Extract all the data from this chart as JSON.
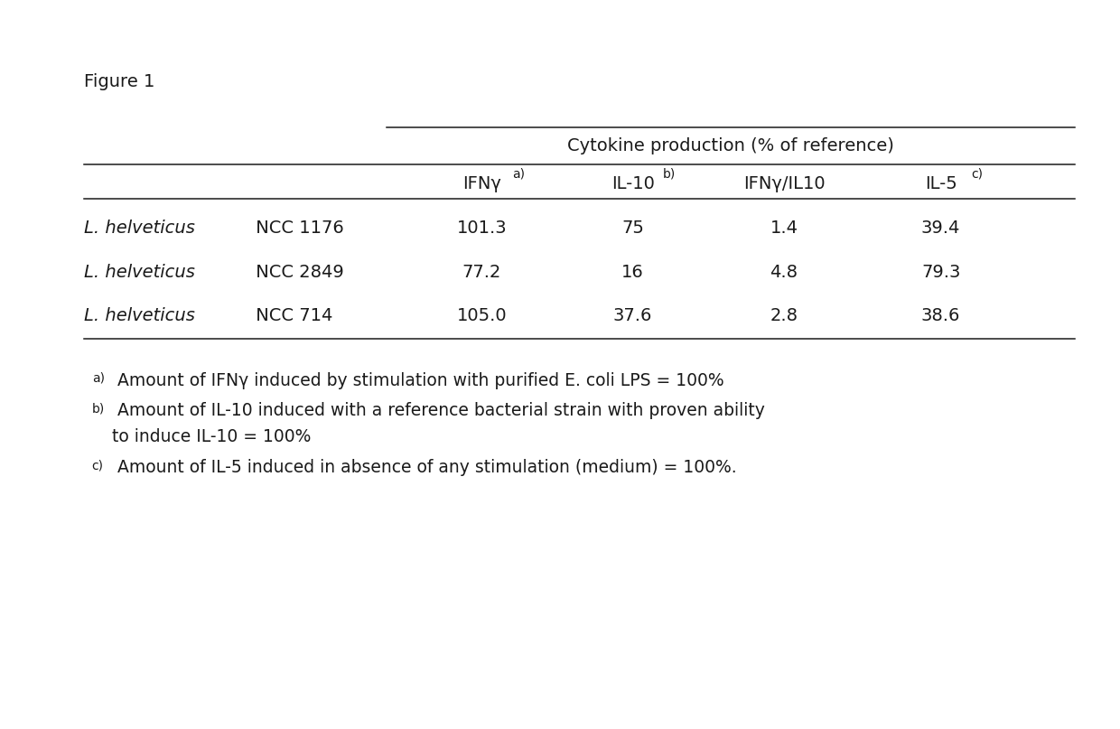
{
  "figure_label": "Figure 1",
  "table_header_group": "Cytokine production (% of reference)",
  "col_bases": [
    "IFNγ",
    "IL-10",
    "IFNγ/IL10",
    "IL-5"
  ],
  "col_sups": [
    "a)",
    "b)",
    "",
    "c)"
  ],
  "rows": [
    {
      "strain_italic": "L. helveticus",
      "strain_normal": " NCC 1176",
      "values": [
        "101.3",
        "75",
        "1.4",
        "39.4"
      ]
    },
    {
      "strain_italic": "L. helveticus",
      "strain_normal": " NCC 2849",
      "values": [
        "77.2",
        "16",
        "4.8",
        "79.3"
      ]
    },
    {
      "strain_italic": "L. helveticus",
      "strain_normal": " NCC 714",
      "values": [
        "105.0",
        "37.6",
        "2.8",
        "38.6"
      ]
    }
  ],
  "footnote_a_sup": "a)",
  "footnote_a_text": " Amount of IFNγ induced by stimulation with purified E. coli LPS = 100%",
  "footnote_b_sup": "b)",
  "footnote_b_line1": " Amount of IL-10 induced with a reference bacterial strain with proven ability",
  "footnote_b_line2": "to induce IL-10 = 100%",
  "footnote_c_sup": "c)",
  "footnote_c_text": " Amount of IL-5 induced in absence of any stimulation (medium) = 100%.",
  "background_color": "#ffffff",
  "text_color": "#1a1a1a",
  "font_size_title": 14,
  "font_size_header": 14,
  "font_size_cell": 14,
  "font_size_sup": 10,
  "font_size_footnote": 13.5,
  "font_size_footnote_sup": 10
}
